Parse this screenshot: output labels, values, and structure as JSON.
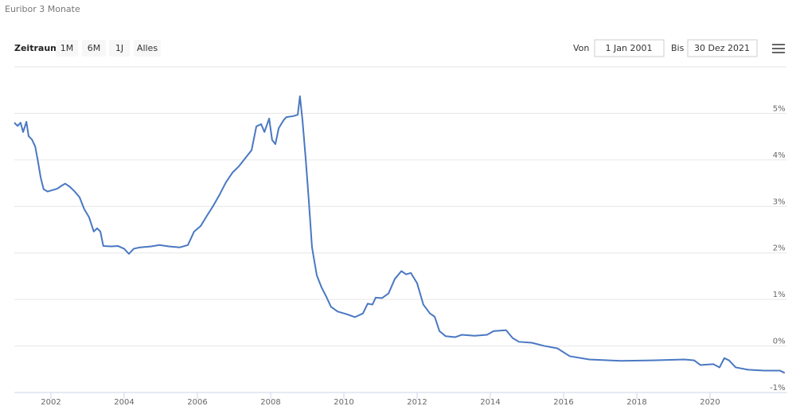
{
  "ui": {
    "zoom_label": "Zeitraum",
    "buttons": [
      "1M",
      "6M",
      "1J",
      "Alles"
    ],
    "from_label": "Von",
    "from_value": "1 Jan 2001",
    "to_label": "Bis",
    "to_value": "30 Dez 2021"
  },
  "chart_data": {
    "type": "line",
    "title": "Euribor 3 Monate",
    "color": "#4a78c2",
    "grid": true,
    "xlim": [
      2001,
      2022.1
    ],
    "xticks": [
      2002,
      2004,
      2006,
      2008,
      2010,
      2012,
      2014,
      2016,
      2018,
      2020
    ],
    "ylim": [
      -1,
      6
    ],
    "yticks": [
      {
        "value": -1,
        "label": "-1%"
      },
      {
        "value": 0,
        "label": "0%"
      },
      {
        "value": 1,
        "label": "1%"
      },
      {
        "value": 2,
        "label": "2%"
      },
      {
        "value": 3,
        "label": "3%"
      },
      {
        "value": 4,
        "label": "4%"
      },
      {
        "value": 5,
        "label": "5%"
      }
    ],
    "x": [
      2001.0,
      2001.09,
      2001.17,
      2001.24,
      2001.33,
      2001.39,
      2001.48,
      2001.57,
      2001.65,
      2001.72,
      2001.8,
      2001.91,
      2002.04,
      2002.17,
      2002.3,
      2002.39,
      2002.52,
      2002.65,
      2002.78,
      2002.91,
      2003.04,
      2003.17,
      2003.26,
      2003.35,
      2003.43,
      2003.65,
      2003.83,
      2004.0,
      2004.13,
      2004.26,
      2004.43,
      2004.74,
      2004.96,
      2005.22,
      2005.52,
      2005.74,
      2005.91,
      2006.09,
      2006.26,
      2006.43,
      2006.61,
      2006.78,
      2006.96,
      2007.13,
      2007.3,
      2007.48,
      2007.61,
      2007.74,
      2007.83,
      2007.96,
      2008.04,
      2008.13,
      2008.22,
      2008.35,
      2008.43,
      2008.61,
      2008.74,
      2008.8,
      2008.87,
      2008.96,
      2009.04,
      2009.13,
      2009.26,
      2009.39,
      2009.52,
      2009.65,
      2009.83,
      2010.09,
      2010.3,
      2010.52,
      2010.65,
      2010.78,
      2010.87,
      2011.04,
      2011.22,
      2011.39,
      2011.57,
      2011.7,
      2011.83,
      2012.0,
      2012.17,
      2012.35,
      2012.48,
      2012.61,
      2012.78,
      2013.04,
      2013.22,
      2013.57,
      2013.91,
      2014.09,
      2014.43,
      2014.61,
      2014.78,
      2015.13,
      2015.48,
      2015.83,
      2016.17,
      2016.7,
      2017.57,
      2018.43,
      2019.3,
      2019.57,
      2019.74,
      2020.09,
      2020.26,
      2020.39,
      2020.52,
      2020.7,
      2021.04,
      2021.48,
      2021.91,
      2022.04
    ],
    "series": [
      {
        "name": "Euribor 3 Monate",
        "color": "#4a78c2",
        "values": [
          4.8,
          4.73,
          4.8,
          4.6,
          4.82,
          4.51,
          4.44,
          4.29,
          3.95,
          3.62,
          3.37,
          3.32,
          3.35,
          3.38,
          3.45,
          3.49,
          3.42,
          3.32,
          3.2,
          2.94,
          2.77,
          2.46,
          2.53,
          2.46,
          2.15,
          2.14,
          2.15,
          2.09,
          1.98,
          2.09,
          2.12,
          2.14,
          2.17,
          2.14,
          2.12,
          2.17,
          2.46,
          2.58,
          2.8,
          3.01,
          3.26,
          3.52,
          3.73,
          3.86,
          4.03,
          4.21,
          4.72,
          4.77,
          4.6,
          4.89,
          4.43,
          4.34,
          4.68,
          4.85,
          4.92,
          4.94,
          4.97,
          5.37,
          4.85,
          4.0,
          3.15,
          2.12,
          1.52,
          1.26,
          1.06,
          0.84,
          0.74,
          0.68,
          0.62,
          0.7,
          0.91,
          0.89,
          1.04,
          1.03,
          1.13,
          1.44,
          1.61,
          1.54,
          1.57,
          1.35,
          0.89,
          0.7,
          0.63,
          0.32,
          0.21,
          0.19,
          0.24,
          0.22,
          0.24,
          0.32,
          0.34,
          0.17,
          0.09,
          0.07,
          0.0,
          -0.05,
          -0.22,
          -0.29,
          -0.32,
          -0.31,
          -0.29,
          -0.31,
          -0.41,
          -0.39,
          -0.46,
          -0.26,
          -0.31,
          -0.46,
          -0.51,
          -0.53,
          -0.53,
          -0.58
        ]
      }
    ]
  }
}
